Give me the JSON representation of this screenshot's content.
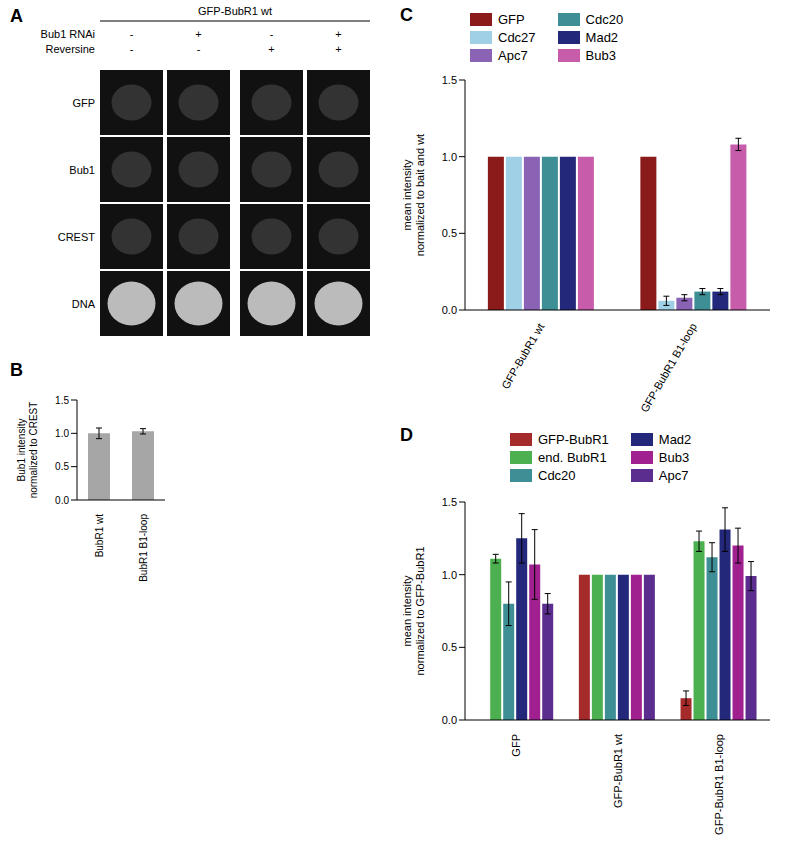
{
  "panel_a": {
    "label": "A",
    "header": "GFP-BubR1 wt",
    "conditions": [
      {
        "name": "Bub1 RNAi",
        "values": [
          "-",
          "+",
          "-",
          "+"
        ]
      },
      {
        "name": "Reversine",
        "values": [
          "-",
          "-",
          "+",
          "+"
        ]
      }
    ],
    "rows": [
      "GFP",
      "Bub1",
      "CREST",
      "DNA"
    ]
  },
  "chart_data": [
    {
      "type": "bar",
      "title": "B",
      "y_label": "Bub1 intensity normalized to CREST",
      "categories": [
        "BubR1 wt",
        "BubR1 B1-loop"
      ],
      "values": [
        1.0,
        1.03
      ],
      "errors": [
        0.08,
        0.04
      ],
      "color": "#a6a6a6",
      "ylim": [
        0,
        1.5
      ],
      "yticks": [
        {
          "value": 0,
          "label": "0.0"
        },
        0.5,
        {
          "value": 1,
          "label": "1.0"
        },
        1.5
      ]
    },
    {
      "type": "bar",
      "title": "C",
      "y_label": "mean intensity normalized to bait and wt",
      "legend": "top",
      "categories": [
        "GFP-BubR1 wt",
        "GFP-BubR1 B1-loop"
      ],
      "series": [
        {
          "name": "GFP",
          "color": "#8b1a1a",
          "values": [
            1,
            1
          ],
          "errors": [
            null,
            null
          ]
        },
        {
          "name": "Cdc27",
          "color": "#9fd0e6",
          "values": [
            1,
            0.06
          ],
          "errors": [
            null,
            0.03
          ]
        },
        {
          "name": "Apc7",
          "color": "#8a63b5",
          "values": [
            1,
            0.08
          ],
          "errors": [
            null,
            0.02
          ]
        },
        {
          "name": "Cdc20",
          "color": "#3d8f95",
          "values": [
            1,
            0.12
          ],
          "errors": [
            null,
            0.02
          ]
        },
        {
          "name": "Mad2",
          "color": "#23287a",
          "values": [
            1,
            0.12
          ],
          "errors": [
            null,
            0.02
          ]
        },
        {
          "name": "Bub3",
          "color": "#c75cab",
          "values": [
            1,
            1.08
          ],
          "errors": [
            null,
            0.04
          ]
        }
      ],
      "ylim": [
        0,
        1.5
      ],
      "yticks": [
        {
          "value": 0,
          "label": "0.0"
        },
        0.5,
        {
          "value": 1,
          "label": "1.0"
        },
        1.5
      ]
    },
    {
      "type": "bar",
      "title": "D",
      "y_label": "mean intensity normalized to GFP-BubR1",
      "legend": "top",
      "categories": [
        "GFP",
        "GFP-BubR1 wt",
        "GFP-BubR1 B1-loop"
      ],
      "series": [
        {
          "name": "GFP-BubR1",
          "color": "#a52a2a",
          "values": [
            null,
            1,
            0.15
          ],
          "errors": [
            null,
            null,
            0.05
          ]
        },
        {
          "name": "end. BubR1",
          "color": "#4caf50",
          "values": [
            1.11,
            1,
            1.23
          ],
          "errors": [
            0.03,
            null,
            0.07
          ]
        },
        {
          "name": "Cdc20",
          "color": "#3d8f95",
          "values": [
            0.8,
            1,
            1.12
          ],
          "errors": [
            0.15,
            null,
            0.1
          ]
        },
        {
          "name": "Mad2",
          "color": "#23287a",
          "values": [
            1.25,
            1,
            1.31
          ],
          "errors": [
            0.17,
            null,
            0.15
          ]
        },
        {
          "name": "Bub3",
          "color": "#a0208f",
          "values": [
            1.07,
            1,
            1.2
          ],
          "errors": [
            0.24,
            null,
            0.12
          ]
        },
        {
          "name": "Apc7",
          "color": "#5b2d8e",
          "values": [
            0.8,
            1,
            0.99
          ],
          "errors": [
            0.07,
            null,
            0.1
          ]
        }
      ],
      "ylim": [
        0,
        1.5
      ],
      "yticks": [
        {
          "value": 0,
          "label": "0.0"
        },
        0.5,
        {
          "value": 1,
          "label": "1.0"
        },
        1.5
      ]
    }
  ]
}
